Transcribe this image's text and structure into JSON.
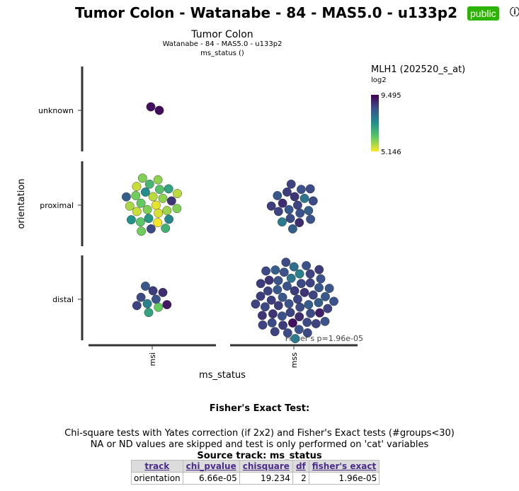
{
  "header": {
    "title": "Tumor Colon - Watanabe - 84 - MAS5.0 - u133p2",
    "badge": "public",
    "info_icon": "info-icon"
  },
  "chart_data": {
    "type": "scatter",
    "title": "Tumor Colon",
    "subtitle": "Watanabe - 84 - MAS5.0 - u133p2",
    "subtitle2": "ms_status ()",
    "xlabel": "ms_status",
    "ylabel": "orientation",
    "categories_x": [
      "msi",
      "mss"
    ],
    "categories_y": [
      "unknown",
      "proximal",
      "distal"
    ],
    "legend": {
      "title": "MLH1 (202520_s_at)",
      "subtitle": "log2",
      "max": "9.495",
      "min": "5.146",
      "max_value": 9.495,
      "min_value": 5.146,
      "placement": "top-right"
    },
    "annotation": "Fisher's p=1.96e-05",
    "groups": [
      {
        "x": "msi",
        "y": "unknown",
        "values": [
          9.3,
          9.35
        ]
      },
      {
        "x": "msi",
        "y": "proximal",
        "values": [
          5.3,
          6.0,
          5.6,
          5.4,
          6.2,
          5.9,
          7.2,
          7.4,
          5.8,
          5.5,
          6.4,
          5.2,
          6.1,
          8.8,
          6.3,
          6.6,
          7.5,
          5.7,
          7.0,
          8.5,
          5.5,
          6.0,
          7.3,
          5.9,
          6.7,
          8.2,
          5.6,
          6.1,
          6.0
        ]
      },
      {
        "x": "msi",
        "y": "distal",
        "values": [
          8.4,
          7.6,
          8.7,
          6.2,
          8.5,
          8.9,
          7.0,
          8.3,
          9.2,
          8.6
        ]
      },
      {
        "x": "mss",
        "y": "proximal",
        "values": [
          8.6,
          8.3,
          8.8,
          8.4,
          8.9,
          7.8,
          8.5,
          8.7,
          8.2,
          8.6,
          8.4,
          8.9,
          8.3,
          8.5,
          7.7,
          8.6,
          8.4,
          8.7,
          8.5,
          8.2
        ]
      },
      {
        "x": "mss",
        "y": "distal",
        "values": [
          8.6,
          8.4,
          8.7,
          8.5,
          8.3,
          8.8,
          8.6,
          8.4,
          8.2,
          8.7,
          8.5,
          8.9,
          8.3,
          8.6,
          8.4,
          7.8,
          8.5,
          8.7,
          8.6,
          9.3,
          8.4,
          8.2,
          8.8,
          7.6,
          8.5,
          8.6,
          8.3,
          8.7,
          8.4,
          9.1,
          8.5,
          8.6,
          8.4,
          8.8,
          8.3,
          8.5,
          7.9,
          8.6,
          8.7,
          8.4,
          8.5,
          8.2,
          8.6,
          8.8,
          8.4,
          8.5,
          8.7,
          8.3,
          8.6,
          8.5,
          8.4,
          8.6,
          8.7,
          7.7,
          8.5,
          8.4,
          8.6
        ]
      }
    ]
  },
  "fisher": {
    "heading": "Fisher's Exact Test:",
    "note_line1": "Chi-square tests with Yates correction (if 2x2) and Fisher's Exact tests (#groups<30)",
    "note_line2": "NA or ND values are skipped and test is only performed on 'cat' variables",
    "source_track": "Source track: ms_status",
    "columns": [
      "track",
      "chi_pvalue",
      "chisquare",
      "df",
      "fisher's exact"
    ],
    "rows": [
      [
        "orientation",
        "6.66e-05",
        "19.234",
        "2",
        "1.96e-05"
      ]
    ]
  }
}
